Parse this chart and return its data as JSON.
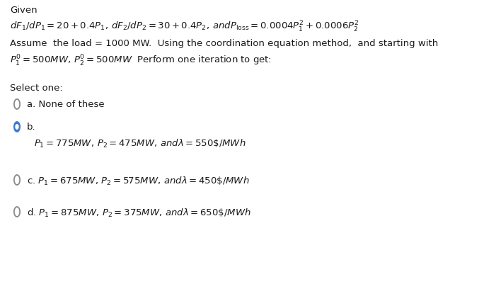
{
  "background_color": "#ffffff",
  "text_color": "#1a1a1a",
  "circle_color": "#3a7bd5",
  "circle_edge_color": "#888888",
  "font_size": 9.5,
  "given_label": "Given",
  "select_label": "Select one:",
  "option_a_text": "a. None of these",
  "option_b_label": "b.",
  "option_b_text": "$P_1 = 775MW,\\, P_2 = 475MW,\\, and\\lambda = 550\\$/MWh$",
  "option_c_text": "c. $P_1 = 675MW,\\, P_2 = 575MW,\\, and\\lambda = 450\\$/MWh$",
  "option_d_text": "d. $P_1 = 875MW,\\, P_2 = 375MW,\\, and\\lambda = 650\\$/MWh$"
}
